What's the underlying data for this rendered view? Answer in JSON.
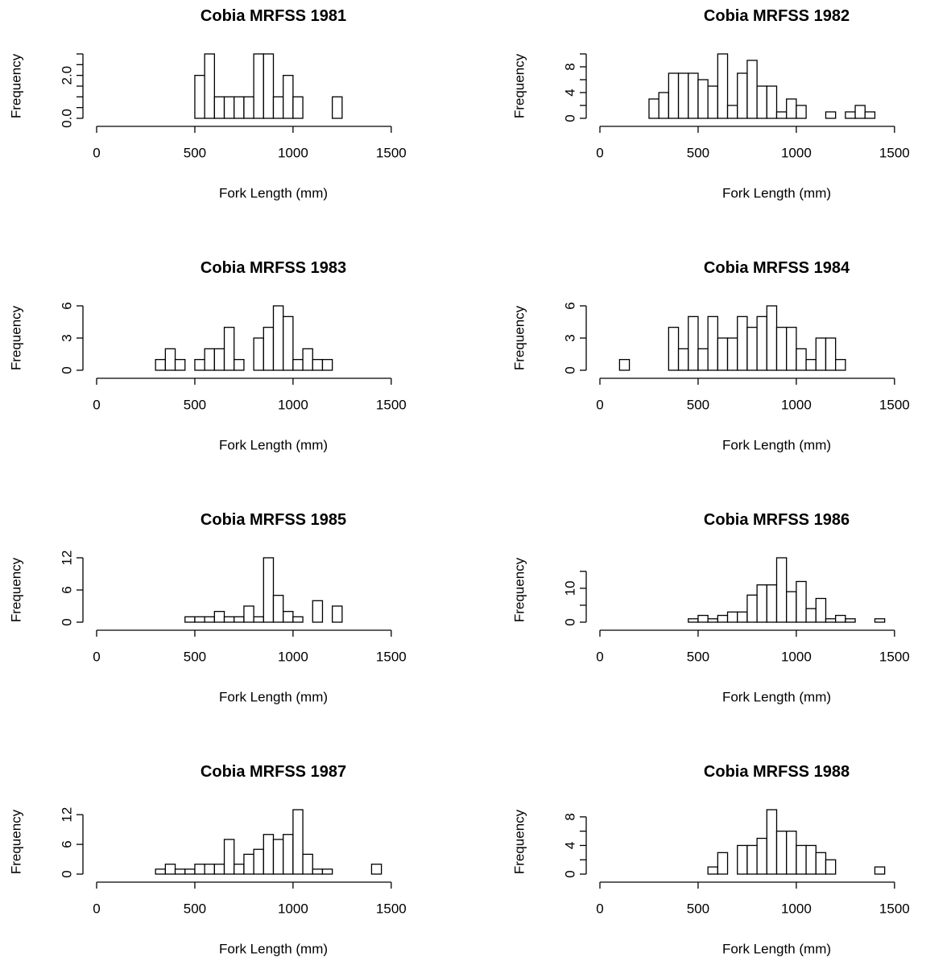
{
  "chart_data": [
    {
      "type": "histogram",
      "title": "Cobia MRFSS 1981",
      "x_label": "Fork Length (mm)",
      "y_label": "Frequency",
      "bins": [
        0,
        50,
        100,
        150,
        200,
        250,
        300,
        350,
        400,
        450,
        500,
        550,
        600,
        650,
        700,
        750,
        800,
        850,
        900,
        950,
        1000,
        1050,
        1100,
        1150,
        1200,
        1250,
        1300,
        1350,
        1400,
        1450,
        1500,
        1550,
        1600,
        1650,
        1700,
        1750,
        1800
      ],
      "values": [
        0,
        0,
        0,
        0,
        0,
        0,
        0,
        0,
        0,
        0,
        2,
        3,
        1,
        1,
        1,
        1,
        3,
        3,
        1,
        2,
        1,
        0,
        0,
        0,
        1,
        0,
        0,
        0,
        0,
        0,
        0,
        0,
        0,
        0,
        0,
        0
      ],
      "xlim": [
        0,
        1800
      ],
      "xticks": [
        0,
        500,
        1000,
        1500
      ],
      "ylim": [
        0,
        3
      ],
      "yticks": [
        {
          "value": 0,
          "label": "0.0"
        },
        {
          "value": 0.5,
          "label": null
        },
        {
          "value": 1,
          "label": null
        },
        {
          "value": 1.5,
          "label": null
        },
        {
          "value": 2,
          "label": "2.0"
        },
        {
          "value": 2.5,
          "label": null
        },
        {
          "value": 3,
          "label": null
        }
      ]
    },
    {
      "type": "histogram",
      "title": "Cobia MRFSS 1982",
      "x_label": "Fork Length (mm)",
      "y_label": "Frequency",
      "bins": [
        0,
        50,
        100,
        150,
        200,
        250,
        300,
        350,
        400,
        450,
        500,
        550,
        600,
        650,
        700,
        750,
        800,
        850,
        900,
        950,
        1000,
        1050,
        1100,
        1150,
        1200,
        1250,
        1300,
        1350,
        1400,
        1450,
        1500,
        1550,
        1600,
        1650,
        1700,
        1750,
        1800
      ],
      "values": [
        0,
        0,
        0,
        0,
        0,
        3,
        4,
        7,
        7,
        7,
        6,
        5,
        10,
        2,
        7,
        9,
        5,
        5,
        1,
        3,
        2,
        0,
        0,
        1,
        0,
        1,
        2,
        1,
        0,
        0,
        0,
        0,
        0,
        0,
        0,
        0
      ],
      "xlim": [
        0,
        1800
      ],
      "xticks": [
        0,
        500,
        1000,
        1500
      ],
      "ylim": [
        0,
        10
      ],
      "yticks": [
        0,
        {
          "value": 2,
          "label": null
        },
        4,
        {
          "value": 6,
          "label": null
        },
        8,
        {
          "value": 10,
          "label": null
        }
      ]
    },
    {
      "type": "histogram",
      "title": "Cobia MRFSS 1983",
      "x_label": "Fork Length (mm)",
      "y_label": "Frequency",
      "bins": [
        0,
        50,
        100,
        150,
        200,
        250,
        300,
        350,
        400,
        450,
        500,
        550,
        600,
        650,
        700,
        750,
        800,
        850,
        900,
        950,
        1000,
        1050,
        1100,
        1150,
        1200,
        1250,
        1300,
        1350,
        1400,
        1450,
        1500,
        1550,
        1600,
        1650,
        1700,
        1750,
        1800
      ],
      "values": [
        0,
        0,
        0,
        0,
        0,
        0,
        1,
        2,
        1,
        0,
        1,
        2,
        2,
        4,
        1,
        0,
        3,
        4,
        6,
        5,
        1,
        2,
        1,
        1,
        0,
        0,
        0,
        0,
        0,
        0,
        0,
        0,
        0,
        0,
        0,
        0
      ],
      "xlim": [
        0,
        1800
      ],
      "xticks": [
        0,
        500,
        1000,
        1500
      ],
      "ylim": [
        0,
        6
      ],
      "yticks": [
        0,
        3,
        6
      ]
    },
    {
      "type": "histogram",
      "title": "Cobia MRFSS 1984",
      "x_label": "Fork Length (mm)",
      "y_label": "Frequency",
      "bins": [
        0,
        50,
        100,
        150,
        200,
        250,
        300,
        350,
        400,
        450,
        500,
        550,
        600,
        650,
        700,
        750,
        800,
        850,
        900,
        950,
        1000,
        1050,
        1100,
        1150,
        1200,
        1250,
        1300,
        1350,
        1400,
        1450,
        1500,
        1550,
        1600,
        1650,
        1700,
        1750,
        1800
      ],
      "values": [
        0,
        0,
        1,
        0,
        0,
        0,
        0,
        4,
        2,
        5,
        2,
        5,
        3,
        3,
        5,
        4,
        5,
        6,
        4,
        4,
        2,
        1,
        3,
        3,
        1,
        0,
        0,
        0,
        0,
        0,
        0,
        0,
        0,
        0,
        0,
        0
      ],
      "xlim": [
        0,
        1800
      ],
      "xticks": [
        0,
        500,
        1000,
        1500
      ],
      "ylim": [
        0,
        6
      ],
      "yticks": [
        0,
        3,
        6
      ]
    },
    {
      "type": "histogram",
      "title": "Cobia MRFSS 1985",
      "x_label": "Fork Length (mm)",
      "y_label": "Frequency",
      "bins": [
        0,
        50,
        100,
        150,
        200,
        250,
        300,
        350,
        400,
        450,
        500,
        550,
        600,
        650,
        700,
        750,
        800,
        850,
        900,
        950,
        1000,
        1050,
        1100,
        1150,
        1200,
        1250,
        1300,
        1350,
        1400,
        1450,
        1500,
        1550,
        1600,
        1650,
        1700,
        1750,
        1800
      ],
      "values": [
        0,
        0,
        0,
        0,
        0,
        0,
        0,
        0,
        0,
        1,
        1,
        1,
        2,
        1,
        1,
        3,
        1,
        12,
        5,
        2,
        1,
        0,
        4,
        0,
        3,
        0,
        0,
        0,
        0,
        0,
        0,
        0,
        0,
        0,
        0,
        0
      ],
      "xlim": [
        0,
        1800
      ],
      "xticks": [
        0,
        500,
        1000,
        1500
      ],
      "ylim": [
        0,
        12
      ],
      "yticks": [
        0,
        6,
        12
      ]
    },
    {
      "type": "histogram",
      "title": "Cobia MRFSS 1986",
      "x_label": "Fork Length (mm)",
      "y_label": "Frequency",
      "bins": [
        0,
        50,
        100,
        150,
        200,
        250,
        300,
        350,
        400,
        450,
        500,
        550,
        600,
        650,
        700,
        750,
        800,
        850,
        900,
        950,
        1000,
        1050,
        1100,
        1150,
        1200,
        1250,
        1300,
        1350,
        1400,
        1450,
        1500,
        1550,
        1600,
        1650,
        1700,
        1750,
        1800
      ],
      "values": [
        0,
        0,
        0,
        0,
        0,
        0,
        0,
        0,
        0,
        1,
        2,
        1,
        2,
        3,
        3,
        8,
        11,
        11,
        19,
        9,
        12,
        4,
        7,
        1,
        2,
        1,
        0,
        0,
        1,
        0,
        0,
        0,
        0,
        0,
        0,
        0
      ],
      "xlim": [
        0,
        1800
      ],
      "xticks": [
        0,
        500,
        1000,
        1500
      ],
      "ylim": [
        0,
        19
      ],
      "yticks": [
        0,
        {
          "value": 5,
          "label": null
        },
        10,
        {
          "value": 15,
          "label": null
        }
      ]
    },
    {
      "type": "histogram",
      "title": "Cobia MRFSS 1987",
      "x_label": "Fork Length (mm)",
      "y_label": "Frequency",
      "bins": [
        0,
        50,
        100,
        150,
        200,
        250,
        300,
        350,
        400,
        450,
        500,
        550,
        600,
        650,
        700,
        750,
        800,
        850,
        900,
        950,
        1000,
        1050,
        1100,
        1150,
        1200,
        1250,
        1300,
        1350,
        1400,
        1450,
        1500,
        1550,
        1600,
        1650,
        1700,
        1750,
        1800
      ],
      "values": [
        0,
        0,
        0,
        0,
        0,
        0,
        1,
        2,
        1,
        1,
        2,
        2,
        2,
        7,
        2,
        4,
        5,
        8,
        7,
        8,
        13,
        4,
        1,
        1,
        0,
        0,
        0,
        0,
        2,
        0,
        0,
        0,
        0,
        0,
        0,
        0
      ],
      "xlim": [
        0,
        1800
      ],
      "xticks": [
        0,
        500,
        1000,
        1500
      ],
      "ylim": [
        0,
        13
      ],
      "yticks": [
        0,
        6,
        12
      ]
    },
    {
      "type": "histogram",
      "title": "Cobia MRFSS 1988",
      "x_label": "Fork Length (mm)",
      "y_label": "Frequency",
      "bins": [
        0,
        50,
        100,
        150,
        200,
        250,
        300,
        350,
        400,
        450,
        500,
        550,
        600,
        650,
        700,
        750,
        800,
        850,
        900,
        950,
        1000,
        1050,
        1100,
        1150,
        1200,
        1250,
        1300,
        1350,
        1400,
        1450,
        1500,
        1550,
        1600,
        1650,
        1700,
        1750,
        1800
      ],
      "values": [
        0,
        0,
        0,
        0,
        0,
        0,
        0,
        0,
        0,
        0,
        0,
        1,
        3,
        0,
        4,
        4,
        5,
        9,
        6,
        6,
        4,
        4,
        3,
        2,
        0,
        0,
        0,
        0,
        1,
        0,
        0,
        0,
        0,
        0,
        0,
        0
      ],
      "xlim": [
        0,
        1800
      ],
      "xticks": [
        0,
        500,
        1000,
        1500
      ],
      "ylim": [
        0,
        9
      ],
      "yticks": [
        0,
        {
          "value": 2,
          "label": null
        },
        4,
        {
          "value": 6,
          "label": null
        },
        8
      ]
    }
  ]
}
